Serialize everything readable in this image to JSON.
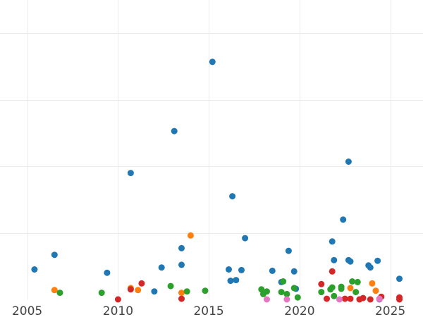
{
  "chart_data": {
    "type": "scatter",
    "title": "",
    "xlabel": "",
    "ylabel": "",
    "xlim": [
      2003.5,
      2026.8
    ],
    "ylim": [
      0,
      4.5
    ],
    "x_ticks": [
      2005,
      2010,
      2015,
      2020,
      2025
    ],
    "x_tick_labels": [
      "2005",
      "2010",
      "2015",
      "2020",
      "2025"
    ],
    "y_gridlines": [
      1,
      2,
      3,
      4
    ],
    "grid": true,
    "legend": "none",
    "series": [
      {
        "color": "#1f77b4",
        "points": [
          [
            2005.4,
            0.45
          ],
          [
            2006.5,
            0.67
          ],
          [
            2009.4,
            0.4
          ],
          [
            2010.7,
            1.9
          ],
          [
            2012.0,
            0.12
          ],
          [
            2012.4,
            0.48
          ],
          [
            2013.1,
            2.53
          ],
          [
            2013.5,
            0.77
          ],
          [
            2013.5,
            0.52
          ],
          [
            2015.2,
            3.57
          ],
          [
            2016.1,
            0.45
          ],
          [
            2016.2,
            0.28
          ],
          [
            2016.3,
            1.55
          ],
          [
            2016.5,
            0.29
          ],
          [
            2016.8,
            0.44
          ],
          [
            2017.0,
            0.92
          ],
          [
            2018.5,
            0.43
          ],
          [
            2019.0,
            0.26
          ],
          [
            2019.4,
            0.73
          ],
          [
            2019.7,
            0.42
          ],
          [
            2019.8,
            0.16
          ],
          [
            2021.8,
            0.87
          ],
          [
            2021.9,
            0.59
          ],
          [
            2022.4,
            1.2
          ],
          [
            2022.7,
            2.07
          ],
          [
            2022.7,
            0.59
          ],
          [
            2022.8,
            0.57
          ],
          [
            2023.8,
            0.51
          ],
          [
            2023.9,
            0.48
          ],
          [
            2024.3,
            0.58
          ],
          [
            2025.5,
            0.31
          ]
        ]
      },
      {
        "color": "#ff7f0e",
        "points": [
          [
            2006.5,
            0.14
          ],
          [
            2010.7,
            0.17
          ],
          [
            2011.1,
            0.14
          ],
          [
            2013.5,
            0.1
          ],
          [
            2014.0,
            0.96
          ],
          [
            2022.8,
            0.17
          ],
          [
            2024.0,
            0.24
          ],
          [
            2024.2,
            0.13
          ]
        ]
      },
      {
        "color": "#2ca02c",
        "points": [
          [
            2006.8,
            0.1
          ],
          [
            2009.1,
            0.1
          ],
          [
            2012.9,
            0.2
          ],
          [
            2013.8,
            0.12
          ],
          [
            2014.8,
            0.13
          ],
          [
            2017.9,
            0.15
          ],
          [
            2018.0,
            0.08
          ],
          [
            2018.2,
            0.12
          ],
          [
            2019.0,
            0.11
          ],
          [
            2019.1,
            0.27
          ],
          [
            2019.3,
            0.08
          ],
          [
            2019.7,
            0.17
          ],
          [
            2019.9,
            0.03
          ],
          [
            2021.2,
            0.11
          ],
          [
            2021.7,
            0.15
          ],
          [
            2021.8,
            0.18
          ],
          [
            2021.9,
            0.05
          ],
          [
            2022.3,
            0.19
          ],
          [
            2022.3,
            0.16
          ],
          [
            2022.9,
            0.27
          ],
          [
            2023.1,
            0.11
          ],
          [
            2023.2,
            0.26
          ]
        ]
      },
      {
        "color": "#d62728",
        "points": [
          [
            2010.0,
            0.0
          ],
          [
            2010.7,
            0.15
          ],
          [
            2011.3,
            0.24
          ],
          [
            2013.5,
            0.01
          ],
          [
            2021.2,
            0.23
          ],
          [
            2021.5,
            0.01
          ],
          [
            2021.8,
            0.42
          ],
          [
            2022.5,
            0.01
          ],
          [
            2022.8,
            0.01
          ],
          [
            2023.3,
            0.0
          ],
          [
            2023.5,
            0.02
          ],
          [
            2023.9,
            0.0
          ],
          [
            2024.5,
            0.04
          ],
          [
            2025.5,
            0.03
          ],
          [
            2025.5,
            0.0
          ]
        ]
      },
      {
        "color": "#9467bd",
        "points": [
          [
            2024.4,
            0.0
          ]
        ]
      },
      {
        "color": "#e377c2",
        "points": [
          [
            2018.2,
            0.0
          ],
          [
            2019.3,
            0.0
          ],
          [
            2022.2,
            0.0
          ],
          [
            2024.4,
            0.01
          ]
        ]
      }
    ]
  }
}
